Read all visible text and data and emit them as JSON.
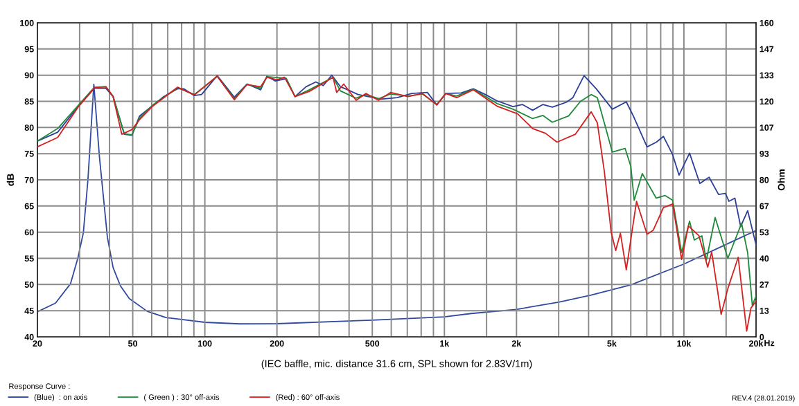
{
  "chart_data": {
    "type": "line",
    "xlabel": "(IEC baffle, mic. distance 31.6 cm, SPL shown for 2.83V/1m)",
    "ylabel": "dB",
    "y2label": "Ohm",
    "legend_title": "Response Curve :",
    "legend": "bottom left",
    "grid": true,
    "log": "x",
    "line_style": "solid",
    "annotations": [
      "REV.4 (28.01.2019)",
      "Hz"
    ],
    "xlim": [
      20,
      20000
    ],
    "xticks": [
      20,
      {
        "value": 30,
        "label": null
      },
      {
        "value": 40,
        "label": null
      },
      50,
      {
        "value": 60,
        "label": null
      },
      {
        "value": 70,
        "label": null
      },
      {
        "value": 80,
        "label": null
      },
      {
        "value": 90,
        "label": null
      },
      100,
      200,
      {
        "value": 300,
        "label": null
      },
      {
        "value": 400,
        "label": null
      },
      500,
      {
        "value": 600,
        "label": null
      },
      {
        "value": 700,
        "label": null
      },
      {
        "value": 800,
        "label": null
      },
      {
        "value": 900,
        "label": null
      },
      {
        "value": 1000,
        "label": "1k"
      },
      {
        "value": 1500,
        "label": null
      },
      {
        "value": 2000,
        "label": "2k"
      },
      {
        "value": 3000,
        "label": null
      },
      {
        "value": 4000,
        "label": null
      },
      {
        "value": 5000,
        "label": "5k"
      },
      {
        "value": 6000,
        "label": null
      },
      {
        "value": 7000,
        "label": null
      },
      {
        "value": 8000,
        "label": null
      },
      {
        "value": 9000,
        "label": null
      },
      {
        "value": 10000,
        "label": "10k"
      },
      {
        "value": 15000,
        "label": null
      },
      {
        "value": 20000,
        "label": "20k"
      }
    ],
    "ylim": [
      40,
      100
    ],
    "yticks": [
      40,
      45,
      50,
      55,
      60,
      65,
      70,
      75,
      80,
      85,
      90,
      95,
      100
    ],
    "y2lim": [
      0,
      160
    ],
    "y2ticks": [
      0,
      {
        "value": 13.33,
        "label": "13"
      },
      {
        "value": 26.67,
        "label": "27"
      },
      40,
      {
        "value": 53.33,
        "label": "53"
      },
      {
        "value": 66.67,
        "label": "67"
      },
      80,
      {
        "value": 93.33,
        "label": "93"
      },
      {
        "value": 106.67,
        "label": "107"
      },
      120,
      {
        "value": 133.33,
        "label": "133"
      },
      {
        "value": 146.67,
        "label": "147"
      },
      160
    ],
    "series": [
      {
        "name": "(Blue)  : on axis",
        "color": "#2b3f9a",
        "x": [
          20,
          24.3,
          29.7,
          34.6,
          38.6,
          41.4,
          46.1,
          49.6,
          53.4,
          60.3,
          67.3,
          77,
          81.6,
          90.4,
          96.9,
          112.6,
          132.8,
          150,
          171,
          181.6,
          196.5,
          218.6,
          237.9,
          264.6,
          290.7,
          312.2,
          339,
          368,
          395,
          436,
          544,
          636,
          730,
          849,
          930,
          1014,
          1176,
          1320,
          1482,
          1656,
          1934,
          2114,
          2336,
          2580,
          2822,
          3222,
          3440,
          3829,
          4305,
          5025,
          5746,
          6148,
          7016,
          7676,
          8209,
          8974,
          9544,
          10556,
          11656,
          12736,
          13950,
          14900,
          15420,
          16320,
          17250,
          18460,
          20000
        ],
        "values": [
          77.4,
          79.1,
          84.1,
          87.5,
          87.5,
          85.9,
          78.7,
          78.5,
          82.2,
          84.1,
          85.9,
          87.4,
          87.4,
          86.1,
          86.3,
          89.9,
          85.8,
          88.3,
          87.2,
          89.8,
          88.9,
          89.3,
          85.9,
          87.8,
          88.7,
          88,
          90,
          87.8,
          87.2,
          86.3,
          85.4,
          85.7,
          86.5,
          86.7,
          84.3,
          86.5,
          86.6,
          87.4,
          86.3,
          85.1,
          84,
          84.4,
          83.3,
          84.4,
          83.9,
          84.8,
          85.7,
          89.9,
          87.4,
          83.5,
          84.9,
          82.2,
          76.3,
          77.2,
          78.3,
          74.8,
          70.9,
          75.1,
          69.3,
          70.5,
          67.2,
          67.4,
          65.9,
          66.5,
          61.1,
          64.1,
          57.6
        ]
      },
      {
        "name": "( Green ) : 30° off-axis",
        "color": "#1f8a3a",
        "x": [
          20,
          24.3,
          29.7,
          34.6,
          38.6,
          41.4,
          46.1,
          49.6,
          53.4,
          60.3,
          77,
          90.4,
          112.6,
          132.8,
          150,
          171,
          181.6,
          218.6,
          237.9,
          273,
          343,
          368,
          428,
          470,
          531,
          596,
          705,
          810,
          930,
          1014,
          1125,
          1320,
          1656,
          1934,
          2336,
          2580,
          2822,
          3300,
          3700,
          4100,
          4350,
          4650,
          5025,
          5680,
          6000,
          6200,
          6700,
          7660,
          8350,
          8970,
          9780,
          10556,
          11050,
          11880,
          12400,
          13500,
          15250,
          17400,
          18460,
          19300,
          20000
        ],
        "values": [
          77.4,
          79.8,
          84.3,
          87.7,
          87.8,
          86,
          78.8,
          78.6,
          81.8,
          84.2,
          87.6,
          86.3,
          89.8,
          85.5,
          88.3,
          87.5,
          89.7,
          89.4,
          85.9,
          87.2,
          89.6,
          87,
          85.6,
          86.3,
          85.5,
          86.4,
          86,
          86.4,
          84.4,
          86.5,
          86,
          87.3,
          84.6,
          83.5,
          81.7,
          82.3,
          81,
          82.2,
          85,
          86.3,
          85.7,
          80.9,
          75.3,
          76,
          72.6,
          66.1,
          71.2,
          66.5,
          67,
          66.1,
          56.1,
          62.1,
          58.5,
          59.3,
          54.6,
          62.8,
          55,
          61.7,
          56,
          46,
          47.8
        ]
      },
      {
        "name": "(Red) : 60° off-axis",
        "color": "#d42020",
        "x": [
          20,
          24.3,
          29.7,
          34.6,
          38.6,
          41.4,
          45,
          49.6,
          53.4,
          60.3,
          77,
          90.4,
          112.6,
          132.8,
          150,
          171,
          181.6,
          200,
          215,
          237.9,
          273,
          343,
          355,
          380,
          428,
          470,
          531,
          596,
          705,
          810,
          930,
          1014,
          1125,
          1320,
          1656,
          2022,
          2336,
          2640,
          2953,
          3520,
          4100,
          4350,
          4650,
          4970,
          5190,
          5430,
          5746,
          6340,
          7016,
          7450,
          8209,
          8974,
          9780,
          10440,
          11560,
          12570,
          13060,
          14300,
          15270,
          16850,
          18280,
          19050,
          20000
        ],
        "values": [
          76.3,
          78.1,
          84,
          87.6,
          87.8,
          85.9,
          78.7,
          79.6,
          81.5,
          84,
          87.7,
          86.2,
          89.8,
          85.3,
          88.2,
          87.8,
          89.6,
          89.1,
          89.6,
          85.9,
          86.9,
          89.6,
          86.7,
          88.3,
          85.2,
          86.5,
          85.2,
          86.7,
          85.9,
          86.5,
          84.3,
          86.5,
          85.7,
          87.2,
          84.1,
          82.6,
          79.8,
          78.9,
          77.2,
          78.7,
          83,
          80.9,
          71.7,
          60,
          56.5,
          59.8,
          52.8,
          65.9,
          59.6,
          60.4,
          64.7,
          65.4,
          54.8,
          61.2,
          59.3,
          53.3,
          56.2,
          44.3,
          49.3,
          55.2,
          41.1,
          45.5,
          46.8
        ]
      },
      {
        "color": "#2f4a9e",
        "axis": "y2",
        "x": [
          20,
          23.8,
          27.5,
          29.5,
          31.1,
          32.5,
          34.4,
          36.3,
          39.2,
          41.4,
          44.4,
          48.4,
          57.5,
          68.8,
          100,
          140,
          200,
          500,
          1000,
          1296,
          2000,
          3000,
          4100,
          6000,
          10000,
          15000,
          20000
        ],
        "values": [
          12.8,
          17.2,
          27.1,
          40.1,
          53,
          80,
          128.7,
          91.7,
          50.6,
          35.3,
          26,
          19.5,
          13,
          9.8,
          7.4,
          6.6,
          6.7,
          8.5,
          10.2,
          11.9,
          14,
          17.7,
          21.3,
          26.5,
          37.1,
          47.1,
          54.2
        ]
      }
    ]
  }
}
